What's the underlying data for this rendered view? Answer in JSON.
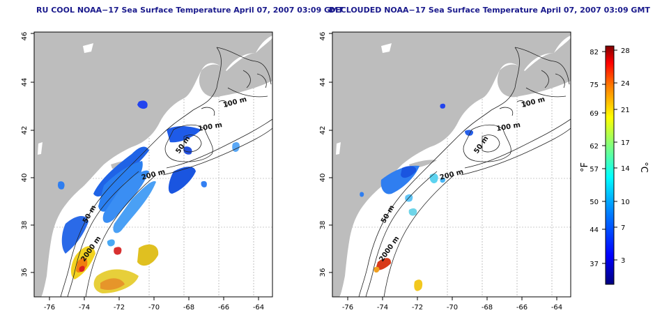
{
  "panels": [
    {
      "title": "RU COOL NOAA−17 Sea Surface Temperature April 07, 2007 03:09 GMT",
      "x_ticks": [
        "-76",
        "-74",
        "-72",
        "-70",
        "-68",
        "-66",
        "-64"
      ],
      "y_ticks": [
        "36",
        "38",
        "40",
        "42",
        "44",
        "46"
      ],
      "contour_labels": [
        "100 m",
        "100 m",
        "50 m",
        "200 m",
        "50 m",
        "2000 m"
      ]
    },
    {
      "title": "DECLOUDED NOAA−17 Sea Surface Temperature April 07, 2007 03:09 GMT",
      "x_ticks": [
        "-76",
        "-74",
        "-72",
        "-70",
        "-68",
        "-66",
        "-64"
      ],
      "y_ticks": [
        "36",
        "38",
        "40",
        "42",
        "44",
        "46"
      ],
      "contour_labels": [
        "100 m",
        "100 m",
        "50 m",
        "200 m",
        "50 m",
        "2000 m"
      ]
    }
  ],
  "colorbar": {
    "fahrenheit_label": "°F",
    "celsius_label": "°C",
    "f_ticks": [
      "82",
      "75",
      "69",
      "62",
      "57",
      "50",
      "44",
      "37"
    ],
    "c_ticks": [
      "28",
      "24",
      "21",
      "17",
      "14",
      "10",
      "7",
      "3"
    ],
    "colors": [
      "#00007f",
      "#0000ff",
      "#007fff",
      "#00ffff",
      "#7fff7f",
      "#ffff00",
      "#ff7f00",
      "#ff0000",
      "#7f0000"
    ]
  }
}
